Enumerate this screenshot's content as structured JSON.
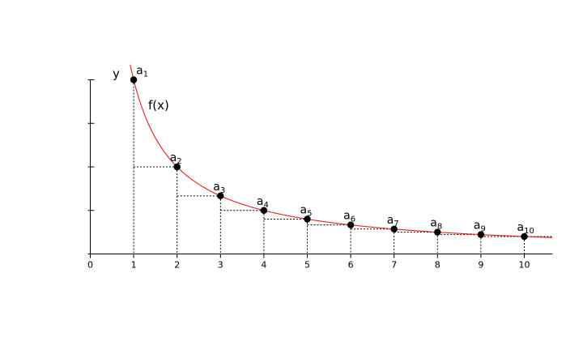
{
  "chart_data": {
    "type": "line",
    "function_label": "f(x)",
    "ylabel": "y",
    "x_ticks": [
      "0",
      "1",
      "2",
      "3",
      "4",
      "5",
      "6",
      "7",
      "8",
      "9",
      "10"
    ],
    "xlim": [
      0,
      10.65
    ],
    "ylim": [
      0,
      1
    ],
    "series": [
      {
        "function": "1/x",
        "x_range": [
          0.92,
          10.65
        ],
        "color": "#dd2222"
      }
    ],
    "points": [
      {
        "n": 1,
        "x": 1,
        "y": 1.0,
        "label_base": "a",
        "label_sub": "1"
      },
      {
        "n": 2,
        "x": 2,
        "y": 0.5,
        "label_base": "a",
        "label_sub": "2"
      },
      {
        "n": 3,
        "x": 3,
        "y": 0.3333,
        "label_base": "a",
        "label_sub": "3"
      },
      {
        "n": 4,
        "x": 4,
        "y": 0.25,
        "label_base": "a",
        "label_sub": "4"
      },
      {
        "n": 5,
        "x": 5,
        "y": 0.2,
        "label_base": "a",
        "label_sub": "5"
      },
      {
        "n": 6,
        "x": 6,
        "y": 0.1667,
        "label_base": "a",
        "label_sub": "6"
      },
      {
        "n": 7,
        "x": 7,
        "y": 0.1429,
        "label_base": "a",
        "label_sub": "7"
      },
      {
        "n": 8,
        "x": 8,
        "y": 0.125,
        "label_base": "a",
        "label_sub": "8"
      },
      {
        "n": 9,
        "x": 9,
        "y": 0.1111,
        "label_base": "a",
        "label_sub": "9"
      },
      {
        "n": 10,
        "x": 10,
        "y": 0.1,
        "label_base": "a",
        "label_sub": "10"
      }
    ],
    "y_ticks": [
      0,
      0.25,
      0.5,
      0.75,
      1.0
    ],
    "grid": false,
    "legend": "none",
    "guide_lines": "dotted",
    "colors": {
      "curve": "#dd2222",
      "axes": "#000000",
      "points": "#000000"
    }
  }
}
